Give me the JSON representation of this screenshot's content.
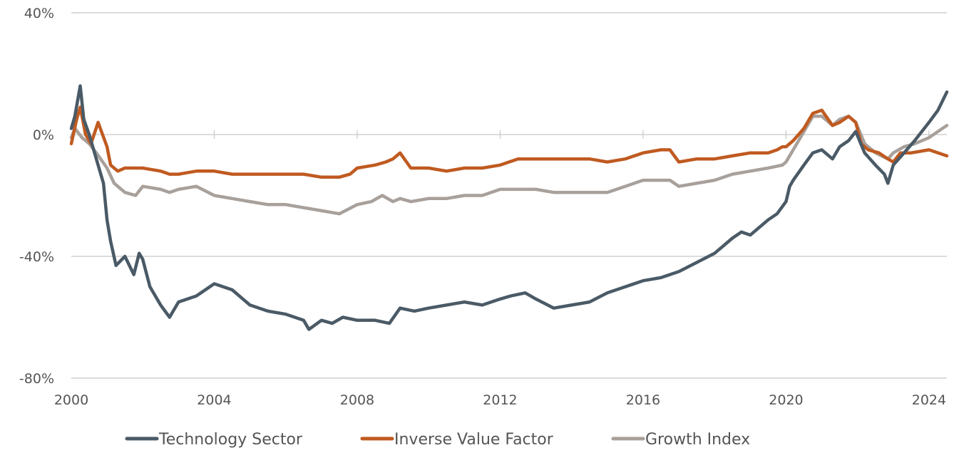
{
  "chart_data": {
    "type": "line",
    "title": "",
    "xlabel": "",
    "ylabel": "",
    "xlim": [
      2000,
      2024.5
    ],
    "ylim": [
      -80,
      40
    ],
    "grid": "horizontal",
    "legend_position": "bottom",
    "y_ticks": [
      {
        "value": 40,
        "label": "40%"
      },
      {
        "value": 0,
        "label": "0%"
      },
      {
        "value": -40,
        "label": "-40%"
      },
      {
        "value": -80,
        "label": "-80%"
      }
    ],
    "x_ticks": [
      {
        "value": 2000,
        "label": "2000"
      },
      {
        "value": 2004,
        "label": "2004"
      },
      {
        "value": 2008,
        "label": "2008"
      },
      {
        "value": 2012,
        "label": "2012"
      },
      {
        "value": 2016,
        "label": "2016"
      },
      {
        "value": 2020,
        "label": "2020"
      },
      {
        "value": 2024,
        "label": "2024"
      }
    ],
    "series": [
      {
        "name": "Technology Sector",
        "color": "#4a5a66",
        "x": [
          2000.0,
          2000.1,
          2000.25,
          2000.35,
          2000.5,
          2000.7,
          2000.9,
          2001.0,
          2001.1,
          2001.25,
          2001.5,
          2001.75,
          2001.9,
          2002.0,
          2002.2,
          2002.5,
          2002.75,
          2003.0,
          2003.5,
          2003.75,
          2004.0,
          2004.5,
          2005.0,
          2005.5,
          2006.0,
          2006.5,
          2006.65,
          2007.0,
          2007.3,
          2007.6,
          2008.0,
          2008.5,
          2008.9,
          2009.2,
          2009.6,
          2010.0,
          2010.5,
          2011.0,
          2011.5,
          2012.0,
          2012.3,
          2012.7,
          2013.0,
          2013.5,
          2014.0,
          2014.5,
          2015.0,
          2015.5,
          2016.0,
          2016.5,
          2017.0,
          2017.5,
          2018.0,
          2018.5,
          2018.75,
          2019.0,
          2019.5,
          2019.75,
          2020.0,
          2020.1,
          2020.2,
          2020.5,
          2020.75,
          2021.0,
          2021.3,
          2021.5,
          2021.75,
          2021.95,
          2022.2,
          2022.5,
          2022.75,
          2022.85,
          2023.0,
          2023.3,
          2023.6,
          2024.0,
          2024.25,
          2024.5
        ],
        "values": [
          2,
          6,
          16,
          5,
          0,
          -8,
          -16,
          -28,
          -35,
          -43,
          -40,
          -46,
          -39,
          -41,
          -50,
          -56,
          -60,
          -55,
          -53,
          -51,
          -49,
          -51,
          -56,
          -58,
          -59,
          -61,
          -64,
          -61,
          -62,
          -60,
          -61,
          -61,
          -62,
          -57,
          -58,
          -57,
          -56,
          -55,
          -56,
          -54,
          -53,
          -52,
          -54,
          -57,
          -56,
          -55,
          -52,
          -50,
          -48,
          -47,
          -45,
          -42,
          -39,
          -34,
          -32,
          -33,
          -28,
          -26,
          -22,
          -17,
          -15,
          -10,
          -6,
          -5,
          -8,
          -4,
          -2,
          1,
          -6,
          -10,
          -13,
          -16,
          -10,
          -6,
          -2,
          4,
          8,
          14
        ]
      },
      {
        "name": "Inverse Value Factor",
        "color": "#c05a20",
        "x": [
          2000.0,
          2000.15,
          2000.25,
          2000.4,
          2000.55,
          2000.75,
          2001.0,
          2001.1,
          2001.3,
          2001.5,
          2002.0,
          2002.5,
          2002.75,
          2003.0,
          2003.5,
          2004.0,
          2004.5,
          2005.0,
          2005.5,
          2006.0,
          2006.5,
          2007.0,
          2007.5,
          2007.8,
          2008.0,
          2008.5,
          2008.8,
          2009.0,
          2009.2,
          2009.5,
          2010.0,
          2010.5,
          2011.0,
          2011.5,
          2012.0,
          2012.5,
          2013.0,
          2013.5,
          2014.0,
          2014.5,
          2015.0,
          2015.5,
          2016.0,
          2016.5,
          2016.75,
          2017.0,
          2017.5,
          2018.0,
          2018.5,
          2019.0,
          2019.5,
          2019.75,
          2019.9,
          2020.0,
          2020.2,
          2020.5,
          2020.75,
          2021.0,
          2021.3,
          2021.5,
          2021.75,
          2021.95,
          2022.1,
          2022.3,
          2022.6,
          2022.85,
          2023.0,
          2023.2,
          2023.5,
          2024.0,
          2024.5
        ],
        "values": [
          -3,
          5,
          9,
          0,
          -3,
          4,
          -4,
          -10,
          -12,
          -11,
          -11,
          -12,
          -13,
          -13,
          -12,
          -12,
          -13,
          -13,
          -13,
          -13,
          -13,
          -14,
          -14,
          -13,
          -11,
          -10,
          -9,
          -8,
          -6,
          -11,
          -11,
          -12,
          -11,
          -11,
          -10,
          -8,
          -8,
          -8,
          -8,
          -8,
          -9,
          -8,
          -6,
          -5,
          -5,
          -9,
          -8,
          -8,
          -7,
          -6,
          -6,
          -5,
          -4,
          -4,
          -2,
          2,
          7,
          8,
          3,
          4,
          6,
          4,
          -3,
          -5,
          -6,
          -8,
          -9,
          -6,
          -6,
          -5,
          -7
        ]
      },
      {
        "name": "Growth Index",
        "color": "#a8a09b",
        "x": [
          2000.0,
          2000.1,
          2000.3,
          2000.5,
          2000.7,
          2001.0,
          2001.2,
          2001.5,
          2001.8,
          2002.0,
          2002.5,
          2002.75,
          2003.0,
          2003.5,
          2004.0,
          2004.5,
          2005.0,
          2005.5,
          2006.0,
          2006.5,
          2007.0,
          2007.5,
          2008.0,
          2008.4,
          2008.7,
          2009.0,
          2009.2,
          2009.5,
          2010.0,
          2010.5,
          2011.0,
          2011.5,
          2012.0,
          2012.5,
          2013.0,
          2013.5,
          2014.0,
          2014.5,
          2015.0,
          2015.5,
          2016.0,
          2016.5,
          2016.75,
          2017.0,
          2017.5,
          2018.0,
          2018.5,
          2019.0,
          2019.5,
          2019.9,
          2020.0,
          2020.2,
          2020.5,
          2020.75,
          2021.0,
          2021.3,
          2021.5,
          2021.75,
          2021.95,
          2022.2,
          2022.5,
          2022.85,
          2023.0,
          2023.3,
          2023.6,
          2024.0,
          2024.25,
          2024.5
        ],
        "values": [
          -1,
          2,
          -1,
          -3,
          -6,
          -11,
          -16,
          -19,
          -20,
          -17,
          -18,
          -19,
          -18,
          -17,
          -20,
          -21,
          -22,
          -23,
          -23,
          -24,
          -25,
          -26,
          -23,
          -22,
          -20,
          -22,
          -21,
          -22,
          -21,
          -21,
          -20,
          -20,
          -18,
          -18,
          -18,
          -19,
          -19,
          -19,
          -19,
          -17,
          -15,
          -15,
          -15,
          -17,
          -16,
          -15,
          -13,
          -12,
          -11,
          -10,
          -9,
          -5,
          1,
          6,
          6,
          3,
          5,
          6,
          4,
          -3,
          -6,
          -8,
          -6,
          -4,
          -3,
          -1,
          1,
          3
        ]
      }
    ]
  }
}
